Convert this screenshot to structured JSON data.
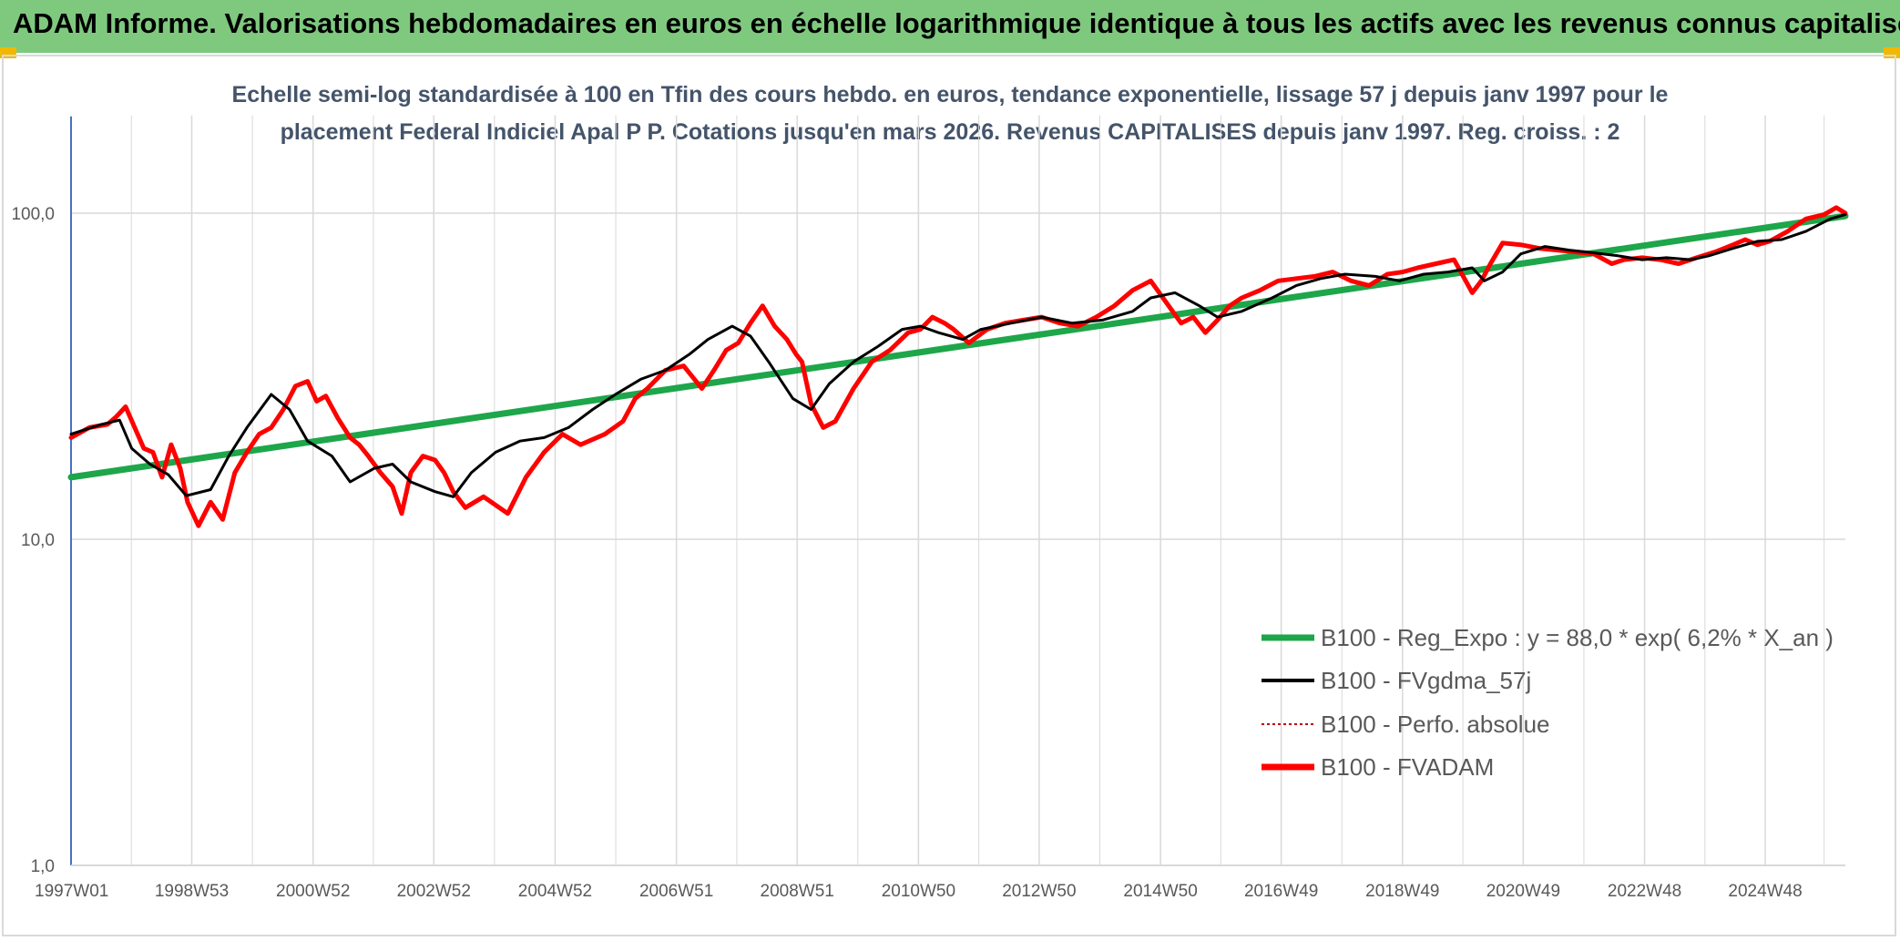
{
  "header": {
    "title": "ADAM Informe. Valorisations hebdomadaires en euros en échelle logarithmique identique à tous les actifs avec les revenus connus capitalisés"
  },
  "colors": {
    "banner": "#7fc97f",
    "regression": "#1ea64a",
    "gdma": "#000000",
    "perfo": "#c00000",
    "fvadam": "#ff0000",
    "grid": "#d9d9d9",
    "axis": "#4472c4"
  },
  "chart_data": {
    "type": "line",
    "subtitle_lines": [
      "Echelle semi-log standardisée à 100 en Tfin des cours hebdo. en euros, tendance exponentielle, lissage 57 j depuis janv 1997 pour le",
      "placement Federal Indiciel Apal P P. Cotations jusqu'en mars 2026. Revenus CAPITALISES depuis janv 1997. Reg. croiss. : 2"
    ],
    "y_scale": "log",
    "ylim": [
      1,
      100
    ],
    "y_ticks": [
      {
        "value": 100,
        "label": "100,0"
      },
      {
        "value": 10,
        "label": "10,0"
      },
      {
        "value": 1,
        "label": "1,0"
      }
    ],
    "xlim": [
      1997.0,
      2026.25
    ],
    "x_ticks": [
      {
        "x": 1997.0,
        "label": "1997W01"
      },
      {
        "x": 1998.99,
        "label": "1998W53"
      },
      {
        "x": 2000.99,
        "label": "2000W52"
      },
      {
        "x": 2002.98,
        "label": "2002W52"
      },
      {
        "x": 2004.98,
        "label": "2004W52"
      },
      {
        "x": 2006.98,
        "label": "2006W51"
      },
      {
        "x": 2008.97,
        "label": "2008W51"
      },
      {
        "x": 2010.97,
        "label": "2010W50"
      },
      {
        "x": 2012.96,
        "label": "2012W50"
      },
      {
        "x": 2014.96,
        "label": "2014W50"
      },
      {
        "x": 2016.95,
        "label": "2016W49"
      },
      {
        "x": 2018.95,
        "label": "2018W49"
      },
      {
        "x": 2020.94,
        "label": "2020W49"
      },
      {
        "x": 2022.94,
        "label": "2022W48"
      },
      {
        "x": 2024.93,
        "label": "2024W48"
      }
    ],
    "legend_position": "bottom-right",
    "series": [
      {
        "name": "B100 - Reg_Expo : y = 88,0 * exp( 6,2% *  X_an )",
        "style": "regression",
        "x": [
          1997.0,
          2026.25
        ],
        "values": [
          15.5,
          98.0
        ]
      },
      {
        "name": "B100 - FVgdma_57j",
        "style": "gdma",
        "x": [
          1997.0,
          1997.5,
          1997.8,
          1998.0,
          1998.3,
          1998.6,
          1998.9,
          1999.3,
          1999.6,
          1999.9,
          2000.3,
          2000.6,
          2000.9,
          2001.3,
          2001.6,
          2002.0,
          2002.3,
          2002.6,
          2003.0,
          2003.3,
          2003.6,
          2004.0,
          2004.4,
          2004.8,
          2005.2,
          2005.6,
          2006.0,
          2006.4,
          2006.8,
          2007.2,
          2007.5,
          2007.9,
          2008.2,
          2008.5,
          2008.9,
          2009.2,
          2009.5,
          2009.9,
          2010.3,
          2010.7,
          2011.0,
          2011.3,
          2011.7,
          2012.0,
          2012.5,
          2013.0,
          2013.5,
          2014.0,
          2014.5,
          2014.8,
          2015.2,
          2015.6,
          2015.9,
          2016.3,
          2016.8,
          2017.2,
          2017.6,
          2018.0,
          2018.5,
          2018.9,
          2019.3,
          2019.7,
          2020.1,
          2020.3,
          2020.6,
          2020.9,
          2021.3,
          2021.7,
          2022.0,
          2022.5,
          2022.9,
          2023.3,
          2023.7,
          2024.0,
          2024.4,
          2024.8,
          2025.2,
          2025.6,
          2026.0,
          2026.25
        ],
        "values": [
          21,
          22.5,
          23.2,
          19,
          17,
          15.8,
          13.6,
          14.2,
          18,
          22,
          27.8,
          25,
          20,
          18,
          15,
          16.5,
          17,
          15,
          14,
          13.5,
          16,
          18.5,
          20,
          20.5,
          22,
          25,
          28,
          31,
          33,
          37,
          41,
          45,
          42,
          35,
          27,
          25,
          30,
          35,
          39,
          44,
          45,
          43,
          41,
          44,
          46,
          48,
          46,
          47,
          50,
          55,
          57,
          52,
          48,
          50,
          55,
          60,
          63,
          65,
          64,
          62,
          65,
          66,
          68,
          62,
          66,
          75,
          79,
          77,
          76,
          74,
          72,
          73,
          72,
          74,
          78,
          82,
          83,
          88,
          96,
          99
        ]
      },
      {
        "name": "B100 - Perfo. absolue",
        "style": "perfo",
        "x": [
          1997.0,
          1997.3,
          1997.6,
          1997.75,
          1997.9,
          1998.05,
          1998.2,
          1998.35,
          1998.5,
          1998.65,
          1998.8,
          1998.92,
          1999.1,
          1999.3,
          1999.5,
          1999.7,
          1999.9,
          2000.1,
          2000.3,
          2000.5,
          2000.7,
          2000.9,
          2001.05,
          2001.2,
          2001.4,
          2001.6,
          2001.75,
          2001.9,
          2002.1,
          2002.3,
          2002.45,
          2002.6,
          2002.8,
          2003.0,
          2003.15,
          2003.3,
          2003.5,
          2003.8,
          2004.2,
          2004.5,
          2004.8,
          2005.1,
          2005.4,
          2005.8,
          2006.1,
          2006.3,
          2006.5,
          2006.8,
          2007.1,
          2007.4,
          2007.6,
          2007.8,
          2008.0,
          2008.2,
          2008.4,
          2008.6,
          2008.8,
          2008.95,
          2009.05,
          2009.2,
          2009.4,
          2009.6,
          2009.9,
          2010.2,
          2010.5,
          2010.8,
          2011.0,
          2011.2,
          2011.4,
          2011.55,
          2011.8,
          2012.1,
          2012.4,
          2012.7,
          2013.0,
          2013.3,
          2013.6,
          2013.9,
          2014.2,
          2014.5,
          2014.8,
          2015.0,
          2015.3,
          2015.5,
          2015.7,
          2015.9,
          2016.1,
          2016.3,
          2016.6,
          2016.9,
          2017.2,
          2017.5,
          2017.8,
          2018.1,
          2018.4,
          2018.7,
          2018.95,
          2019.2,
          2019.5,
          2019.8,
          2020.1,
          2020.25,
          2020.4,
          2020.6,
          2020.9,
          2021.2,
          2021.5,
          2021.8,
          2022.1,
          2022.4,
          2022.6,
          2022.9,
          2023.2,
          2023.5,
          2023.8,
          2024.1,
          2024.4,
          2024.6,
          2024.8,
          2025.0,
          2025.3,
          2025.6,
          2025.9,
          2026.1,
          2026.25
        ],
        "values": [
          20.5,
          22,
          22.5,
          23.8,
          25.5,
          22,
          19,
          18.5,
          15.5,
          19.5,
          16.5,
          13,
          11,
          13,
          11.5,
          16,
          18.5,
          21,
          22,
          25,
          29.5,
          30.5,
          26.5,
          27.5,
          23.5,
          20.5,
          19.5,
          18,
          16,
          14.5,
          12,
          16,
          18,
          17.5,
          16,
          14,
          12.5,
          13.5,
          12,
          15.5,
          18.5,
          21,
          19.5,
          21,
          23,
          27,
          29,
          33,
          34,
          29,
          33,
          38,
          40,
          46,
          52,
          45,
          41,
          37,
          35,
          26,
          22,
          23,
          29,
          35,
          38,
          43,
          44,
          48,
          46,
          44,
          40,
          44,
          46,
          47,
          48,
          46,
          45,
          48,
          52,
          58,
          62,
          55,
          46,
          48,
          43,
          47,
          52,
          55,
          58,
          62,
          63,
          64,
          66,
          62,
          60,
          65,
          66,
          68,
          70,
          72,
          57,
          62,
          70,
          81,
          80,
          78,
          77,
          76,
          75,
          70,
          72,
          73,
          72,
          70,
          73,
          76,
          80,
          83,
          80,
          82,
          88,
          96,
          99,
          104,
          100
        ]
      },
      {
        "name": "B100 - FVADAM",
        "style": "fvadam",
        "x": [
          1997.0,
          1997.3,
          1997.6,
          1997.75,
          1997.9,
          1998.05,
          1998.2,
          1998.35,
          1998.5,
          1998.65,
          1998.8,
          1998.92,
          1999.1,
          1999.3,
          1999.5,
          1999.7,
          1999.9,
          2000.1,
          2000.3,
          2000.5,
          2000.7,
          2000.9,
          2001.05,
          2001.2,
          2001.4,
          2001.6,
          2001.75,
          2001.9,
          2002.1,
          2002.3,
          2002.45,
          2002.6,
          2002.8,
          2003.0,
          2003.15,
          2003.3,
          2003.5,
          2003.8,
          2004.2,
          2004.5,
          2004.8,
          2005.1,
          2005.4,
          2005.8,
          2006.1,
          2006.3,
          2006.5,
          2006.8,
          2007.1,
          2007.4,
          2007.6,
          2007.8,
          2008.0,
          2008.2,
          2008.4,
          2008.6,
          2008.8,
          2008.95,
          2009.05,
          2009.2,
          2009.4,
          2009.6,
          2009.9,
          2010.2,
          2010.5,
          2010.8,
          2011.0,
          2011.2,
          2011.4,
          2011.55,
          2011.8,
          2012.1,
          2012.4,
          2012.7,
          2013.0,
          2013.3,
          2013.6,
          2013.9,
          2014.2,
          2014.5,
          2014.8,
          2015.0,
          2015.3,
          2015.5,
          2015.7,
          2015.9,
          2016.1,
          2016.3,
          2016.6,
          2016.9,
          2017.2,
          2017.5,
          2017.8,
          2018.1,
          2018.4,
          2018.7,
          2018.95,
          2019.2,
          2019.5,
          2019.8,
          2020.1,
          2020.25,
          2020.4,
          2020.6,
          2020.9,
          2021.2,
          2021.5,
          2021.8,
          2022.1,
          2022.4,
          2022.6,
          2022.9,
          2023.2,
          2023.5,
          2023.8,
          2024.1,
          2024.4,
          2024.6,
          2024.8,
          2025.0,
          2025.3,
          2025.6,
          2025.9,
          2026.1,
          2026.25
        ],
        "values": [
          20.5,
          22,
          22.5,
          23.8,
          25.5,
          22,
          19,
          18.5,
          15.5,
          19.5,
          16.5,
          13,
          11,
          13,
          11.5,
          16,
          18.5,
          21,
          22,
          25,
          29.5,
          30.5,
          26.5,
          27.5,
          23.5,
          20.5,
          19.5,
          18,
          16,
          14.5,
          12,
          16,
          18,
          17.5,
          16,
          14,
          12.5,
          13.5,
          12,
          15.5,
          18.5,
          21,
          19.5,
          21,
          23,
          27,
          29,
          33,
          34,
          29,
          33,
          38,
          40,
          46,
          52,
          45,
          41,
          37,
          35,
          26,
          22,
          23,
          29,
          35,
          38,
          43,
          44,
          48,
          46,
          44,
          40,
          44,
          46,
          47,
          48,
          46,
          45,
          48,
          52,
          58,
          62,
          55,
          46,
          48,
          43,
          47,
          52,
          55,
          58,
          62,
          63,
          64,
          66,
          62,
          60,
          65,
          66,
          68,
          70,
          72,
          57,
          62,
          70,
          81,
          80,
          78,
          77,
          76,
          75,
          70,
          72,
          73,
          72,
          70,
          73,
          76,
          80,
          83,
          80,
          82,
          88,
          96,
          99,
          104,
          100
        ]
      }
    ]
  }
}
